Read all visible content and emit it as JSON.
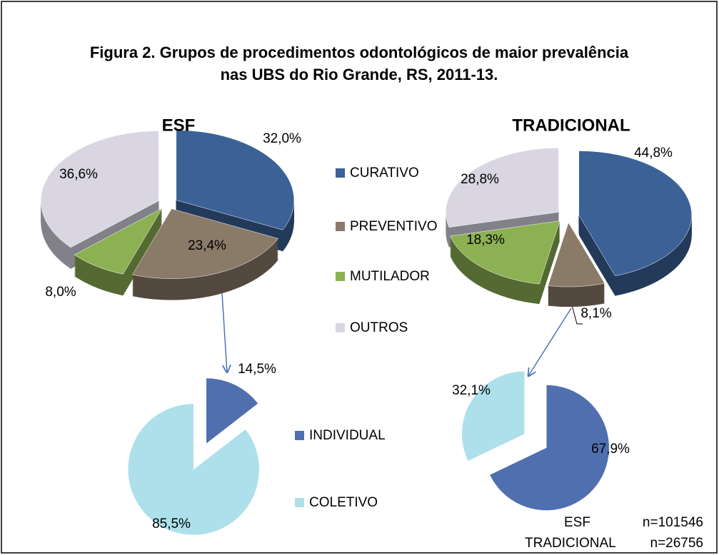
{
  "figure": {
    "title": [
      "Figura 2. Grupos de procedimentos odontológicos de maior prevalência",
      "nas UBS do Rio Grande, RS,  2011-13."
    ],
    "notes": [
      {
        "label": "ESF",
        "text": "n=101546"
      },
      {
        "label": "TRADICIONAL",
        "text": "n=26756"
      }
    ]
  },
  "chart_data": [
    {
      "type": "pie",
      "title": "ESF",
      "categories": [
        "CURATIVO",
        "PREVENTIVO",
        "MUTILADOR",
        "OUTROS"
      ],
      "values": [
        32.0,
        23.4,
        8.0,
        36.6
      ],
      "value_labels": [
        "32,0%",
        "23,4%",
        "8,0%",
        "36,6%"
      ],
      "colors": [
        "#3b6196",
        "#8a7a68",
        "#8cb153",
        "#d9d6e2"
      ]
    },
    {
      "type": "pie",
      "title": "TRADICIONAL",
      "categories": [
        "CURATIVO",
        "PREVENTIVO",
        "MUTILADOR",
        "OUTROS"
      ],
      "values": [
        44.8,
        8.1,
        18.3,
        28.8
      ],
      "value_labels": [
        "44,8%",
        "8,1%",
        "18,3%",
        "28,8%"
      ],
      "colors": [
        "#3b6196",
        "#8a7a68",
        "#8cb153",
        "#d9d6e2"
      ]
    },
    {
      "type": "pie",
      "categories": [
        "INDIVIDUAL",
        "COLETIVO"
      ],
      "values": [
        14.5,
        85.5
      ],
      "value_labels": [
        "14,5%",
        "85,5%"
      ],
      "colors": [
        "#4f6fae",
        "#ade0ea"
      ]
    },
    {
      "type": "pie",
      "categories": [
        "INDIVIDUAL",
        "COLETIVO"
      ],
      "values": [
        67.9,
        32.1
      ],
      "value_labels": [
        "67,9%",
        "32,1%"
      ],
      "colors": [
        "#4f6fae",
        "#ade0ea"
      ]
    }
  ]
}
